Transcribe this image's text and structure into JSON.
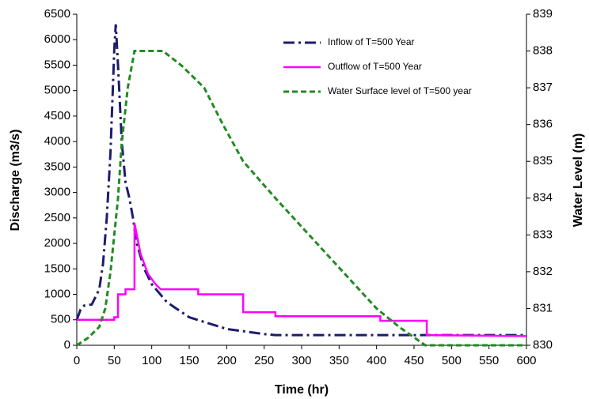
{
  "chart_data": {
    "type": "line",
    "xlabel": "Time (hr)",
    "ylabel": "Discharge (m3/s)",
    "y2label": "Water Level (m)",
    "xlim": [
      0,
      600
    ],
    "xticks": [
      0,
      50,
      100,
      150,
      200,
      250,
      300,
      350,
      400,
      450,
      500,
      550,
      600
    ],
    "ylim": [
      0,
      6500
    ],
    "yticks": [
      0,
      500,
      1000,
      1500,
      2000,
      2500,
      3000,
      3500,
      4000,
      4500,
      5000,
      5500,
      6000,
      6500
    ],
    "y2lim": [
      830,
      839
    ],
    "y2ticks": [
      830,
      831,
      832,
      833,
      834,
      835,
      836,
      837,
      838,
      839
    ],
    "grid": false,
    "legend": "upper right",
    "series": [
      {
        "name": "Inflow of T=500 Year",
        "color": "#1c1c6e",
        "line_style": "dash-dot",
        "x": [
          0,
          5,
          10,
          20,
          30,
          35,
          40,
          45,
          50,
          52,
          55,
          60,
          65,
          70,
          75,
          80,
          90,
          100,
          120,
          150,
          200,
          250,
          265,
          300,
          400,
          470,
          600
        ],
        "values": [
          500,
          700,
          780,
          800,
          1100,
          1600,
          2500,
          3800,
          5800,
          6300,
          5500,
          4000,
          3200,
          2900,
          2500,
          2000,
          1500,
          1200,
          850,
          550,
          320,
          220,
          200,
          200,
          200,
          200,
          200
        ]
      },
      {
        "name": "Outflow of T=500 Year",
        "color": "#ff00ff",
        "line_style": "solid",
        "x": [
          0,
          50,
          50,
          55,
          55,
          65,
          65,
          77,
          77,
          85,
          95,
          105,
          112,
          162,
          162,
          222,
          222,
          265,
          265,
          405,
          405,
          467,
          467,
          600
        ],
        "values": [
          500,
          500,
          550,
          550,
          1000,
          1000,
          1100,
          1100,
          2400,
          1800,
          1400,
          1200,
          1100,
          1100,
          1000,
          1000,
          650,
          650,
          570,
          570,
          480,
          480,
          200,
          180
        ]
      },
      {
        "name": "Water Surface level of T=500 year",
        "color": "#228b22",
        "line_style": "dash",
        "axis": "y2",
        "x": [
          0,
          15,
          30,
          38,
          45,
          50,
          55,
          60,
          68,
          77,
          100,
          115,
          140,
          170,
          195,
          222,
          265,
          310,
          355,
          400,
          430,
          465,
          600
        ],
        "values": [
          830,
          830.2,
          830.5,
          831,
          832,
          833,
          834,
          835.5,
          837,
          838,
          838,
          838,
          837.6,
          837,
          836,
          835,
          834,
          833,
          832,
          831,
          830.5,
          830,
          830
        ]
      }
    ]
  }
}
